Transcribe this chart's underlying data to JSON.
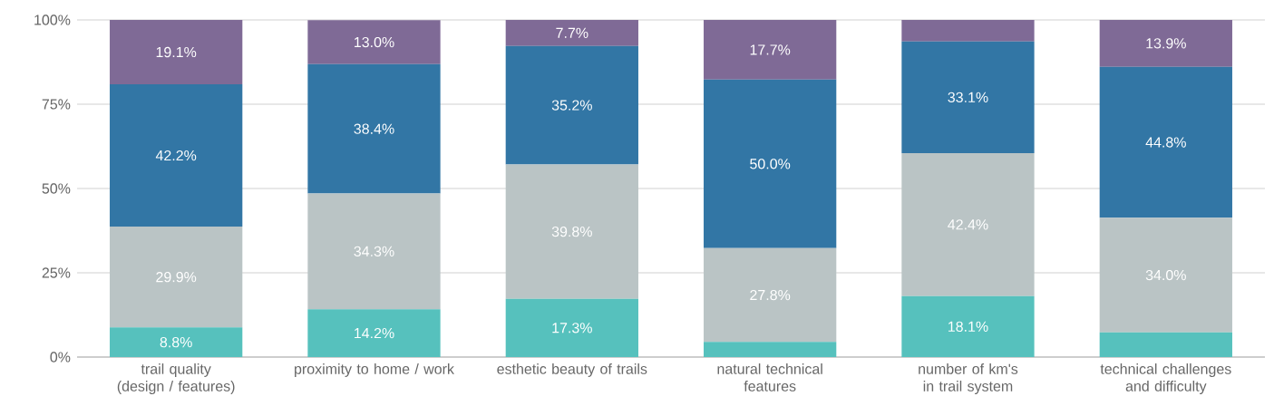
{
  "chart_data": {
    "type": "bar",
    "stacked": true,
    "grid": "y",
    "categories": [
      "trail quality (design / features)",
      "proximity to home / work",
      "esthetic beauty of trails",
      "natural technical features",
      "number of km's in trail system",
      "technical challenges and difficulty"
    ],
    "ylim": [
      0,
      100
    ],
    "yticks": [
      {
        "value": 0,
        "label": "0%"
      },
      {
        "value": 25,
        "label": "25%"
      },
      {
        "value": 50,
        "label": "50%"
      },
      {
        "value": 75,
        "label": "75%"
      },
      {
        "value": 100,
        "label": "100%"
      }
    ],
    "series": [
      {
        "color": "#56c1bd",
        "values": [
          8.8,
          14.2,
          17.3,
          4.5,
          18.1,
          7.3
        ],
        "value_labels": [
          "8.8%",
          "14.2%",
          "17.3%",
          null,
          "18.1%",
          null
        ]
      },
      {
        "color": "#bac4c5",
        "values": [
          29.9,
          34.3,
          39.8,
          27.8,
          42.4,
          34.0
        ],
        "value_labels": [
          "29.9%",
          "34.3%",
          "39.8%",
          "27.8%",
          "42.4%",
          "34.0%"
        ]
      },
      {
        "color": "#3276a5",
        "values": [
          42.2,
          38.4,
          35.2,
          50.0,
          33.1,
          44.8
        ],
        "value_labels": [
          "42.2%",
          "38.4%",
          "35.2%",
          "50.0%",
          "33.1%",
          "44.8%"
        ]
      },
      {
        "color": "#7f6a96",
        "values": [
          19.1,
          13.0,
          7.7,
          17.7,
          6.4,
          13.9
        ],
        "value_labels": [
          "19.1%",
          "13.0%",
          "7.7%",
          "17.7%",
          null,
          "13.9%"
        ]
      }
    ]
  }
}
